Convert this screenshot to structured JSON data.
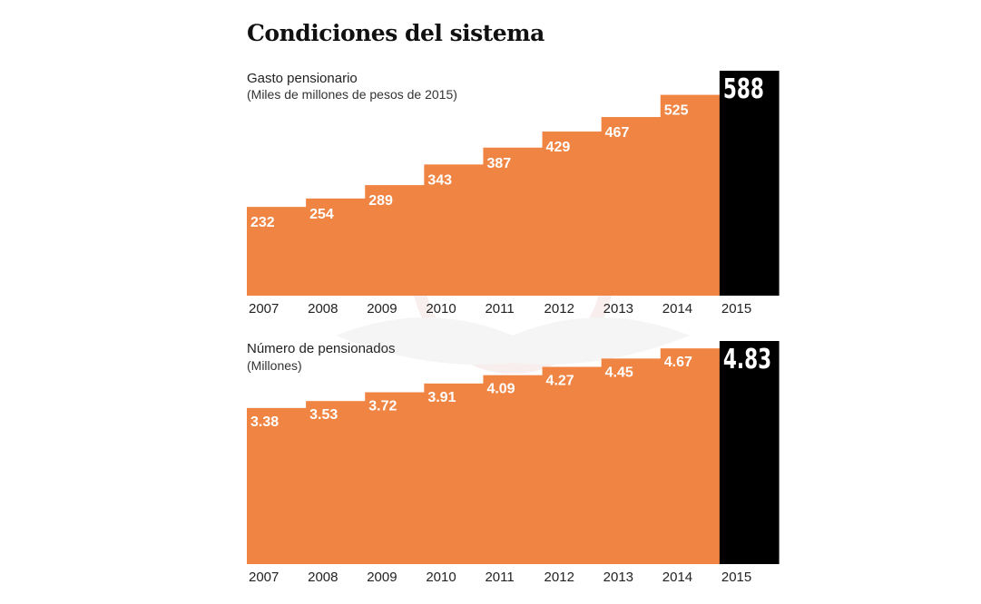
{
  "title": "Condiciones del sistema",
  "colors": {
    "bar": "#f08443",
    "highlight": "#000000",
    "label": "#ffffff"
  },
  "chart_data": [
    {
      "type": "bar",
      "title": "Gasto pensionario",
      "subtitle": "(Miles de millones de pesos de 2015)",
      "categories": [
        "2007",
        "2008",
        "2009",
        "2010",
        "2011",
        "2012",
        "2013",
        "2014",
        "2015"
      ],
      "values": [
        232,
        254,
        289,
        343,
        387,
        429,
        467,
        525,
        588
      ],
      "labels": [
        "232",
        "254",
        "289",
        "343",
        "387",
        "429",
        "467",
        "525",
        "588"
      ],
      "highlight": "2015",
      "ylim": [
        0,
        588
      ],
      "grid": false
    },
    {
      "type": "bar",
      "title": "Número de pensionados",
      "subtitle": "(Millones)",
      "categories": [
        "2007",
        "2008",
        "2009",
        "2010",
        "2011",
        "2012",
        "2013",
        "2014",
        "2015"
      ],
      "values": [
        3.38,
        3.53,
        3.72,
        3.91,
        4.09,
        4.27,
        4.45,
        4.67,
        4.83
      ],
      "labels": [
        "3.38",
        "3.53",
        "3.72",
        "3.91",
        "4.09",
        "4.27",
        "4.45",
        "4.67",
        "4.83"
      ],
      "highlight": "2015",
      "ylim": [
        0,
        4.83
      ],
      "grid": false
    }
  ]
}
